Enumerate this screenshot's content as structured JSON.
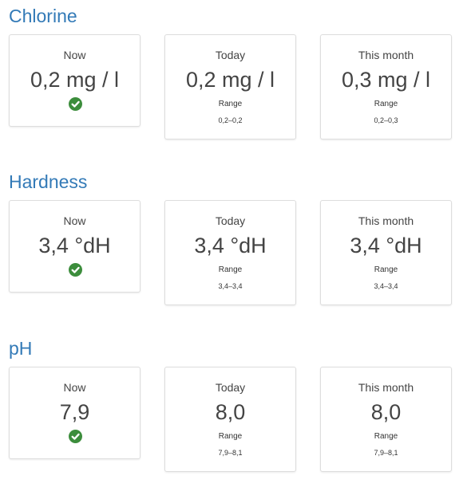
{
  "colors": {
    "accent": "#337ab7",
    "ok": "#3c8d3c",
    "border": "#dddddd"
  },
  "sections": [
    {
      "title": "Chlorine",
      "now": {
        "label": "Now",
        "value": "0,2 mg / l",
        "status_icon": "check-circle-icon"
      },
      "today": {
        "label": "Today",
        "value": "0,2 mg / l",
        "range_label": "Range",
        "range": "0,2–0,2"
      },
      "month": {
        "label": "This month",
        "value": "0,3 mg / l",
        "range_label": "Range",
        "range": "0,2–0,3"
      }
    },
    {
      "title": "Hardness",
      "now": {
        "label": "Now",
        "value": "3,4 °dH",
        "status_icon": "check-circle-icon"
      },
      "today": {
        "label": "Today",
        "value": "3,4 °dH",
        "range_label": "Range",
        "range": "3,4–3,4"
      },
      "month": {
        "label": "This month",
        "value": "3,4 °dH",
        "range_label": "Range",
        "range": "3,4–3,4"
      }
    },
    {
      "title": "pH",
      "now": {
        "label": "Now",
        "value": "7,9",
        "status_icon": "check-circle-icon"
      },
      "today": {
        "label": "Today",
        "value": "8,0",
        "range_label": "Range",
        "range": "7,9–8,1"
      },
      "month": {
        "label": "This month",
        "value": "8,0",
        "range_label": "Range",
        "range": "7,9–8,1"
      }
    }
  ]
}
